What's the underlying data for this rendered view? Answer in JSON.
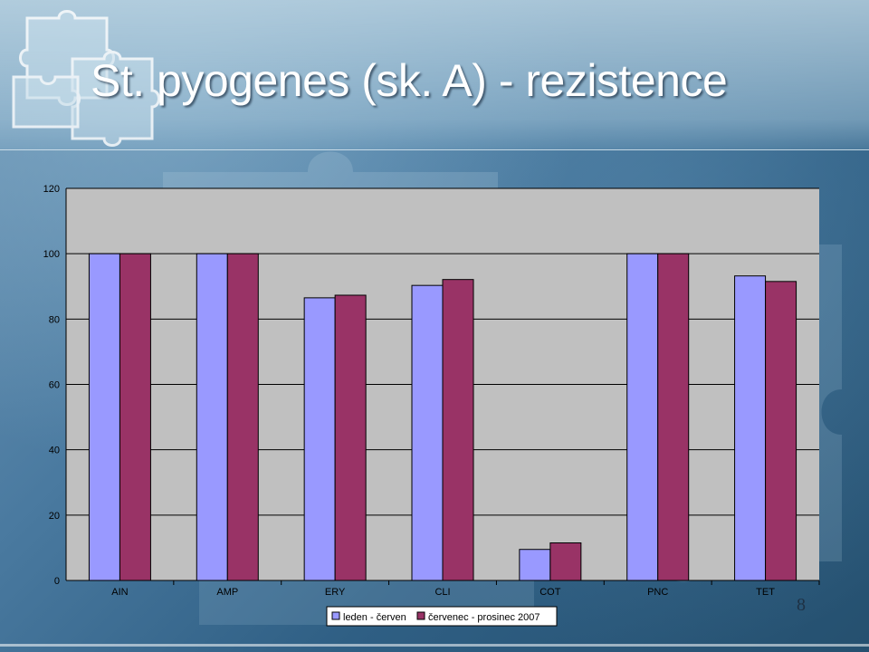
{
  "slide": {
    "title": "St. pyogenes (sk. A) - rezistence",
    "page_number": "8"
  },
  "colors": {
    "series_1": "#9999ff",
    "series_2": "#993366",
    "plot_background": "#c0c0c0",
    "text": "#000000"
  },
  "chart_data": {
    "type": "bar",
    "title": "",
    "xlabel": "",
    "ylabel": "",
    "categories": [
      "AIN",
      "AMP",
      "ERY",
      "CLI",
      "COT",
      "PNC",
      "TET"
    ],
    "series": [
      {
        "name": "leden - červen",
        "values": [
          100,
          100,
          86.5,
          90.3,
          9.5,
          100,
          93.2
        ]
      },
      {
        "name": "červenec - prosinec 2007",
        "values": [
          100,
          100,
          87.3,
          92.1,
          11.5,
          100,
          91.5
        ]
      }
    ],
    "ylim": [
      0,
      120
    ],
    "yticks": [
      0,
      20,
      40,
      60,
      80,
      100,
      120
    ],
    "grid": true,
    "legend_position": "bottom"
  }
}
